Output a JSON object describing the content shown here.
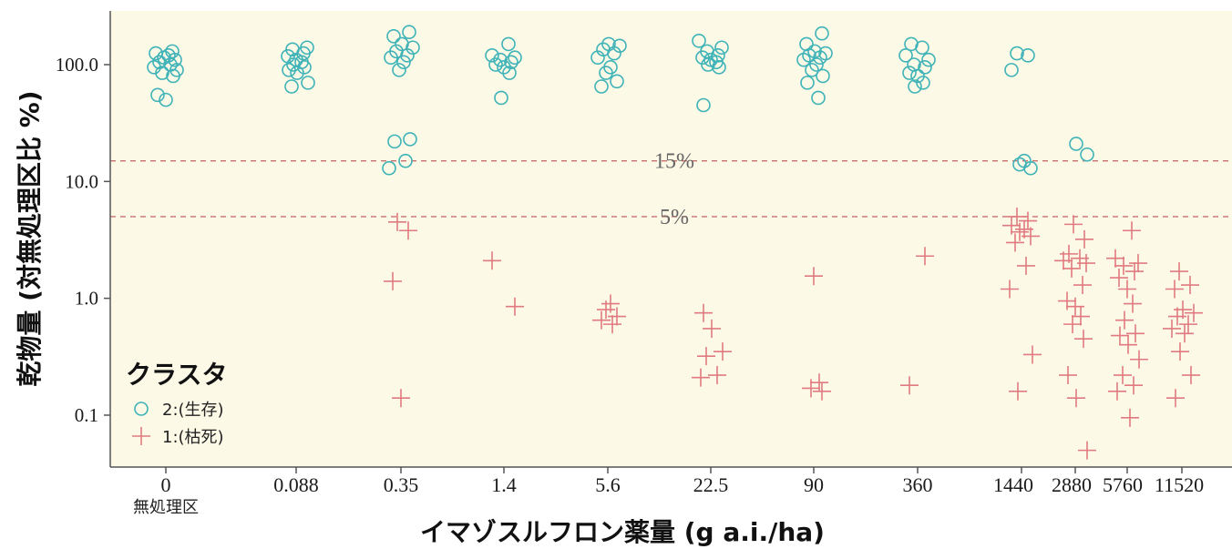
{
  "chart_data": {
    "type": "scatter",
    "xlabel": "イマゾスルフロン薬量 (g a.i./ha)",
    "ylabel": "乾物量 (対無処理区比 %)",
    "y_scale": "log",
    "ylim": [
      0.05,
      300
    ],
    "y_ticks": [
      "100.0",
      "10.0",
      "1.0",
      "0.1"
    ],
    "y_tick_values": [
      100,
      10,
      1,
      0.1
    ],
    "categories": [
      "0",
      "0.088",
      "0.35",
      "1.4",
      "5.6",
      "22.5",
      "90",
      "360",
      "1440",
      "2880",
      "5760",
      "11520"
    ],
    "category_sublabel": "無処理区",
    "reference_lines": [
      {
        "value": 15,
        "label": "15%"
      },
      {
        "value": 5,
        "label": "5%"
      }
    ],
    "legend": {
      "title": "クラスタ",
      "position": "bottom-left",
      "entries": [
        "2:(生存)",
        "1:(枯死)"
      ]
    },
    "colors": {
      "alive": "#3fb3b8",
      "dead": "#e07a80",
      "panel": "#fcf9e6",
      "refline": "#c87070"
    },
    "series": [
      {
        "name": "2:(生存)",
        "marker": "circle",
        "points": [
          [
            "0",
            50
          ],
          [
            "0",
            55
          ],
          [
            "0",
            80
          ],
          [
            "0",
            85
          ],
          [
            "0",
            90
          ],
          [
            "0",
            95
          ],
          [
            "0",
            100
          ],
          [
            "0",
            105
          ],
          [
            "0",
            110
          ],
          [
            "0",
            115
          ],
          [
            "0",
            120
          ],
          [
            "0",
            125
          ],
          [
            "0",
            130
          ],
          [
            "0.088",
            65
          ],
          [
            "0.088",
            70
          ],
          [
            "0.088",
            85
          ],
          [
            "0.088",
            90
          ],
          [
            "0.088",
            95
          ],
          [
            "0.088",
            100
          ],
          [
            "0.088",
            105
          ],
          [
            "0.088",
            110
          ],
          [
            "0.088",
            118
          ],
          [
            "0.088",
            125
          ],
          [
            "0.088",
            135
          ],
          [
            "0.088",
            140
          ],
          [
            "0.35",
            13
          ],
          [
            "0.35",
            15
          ],
          [
            "0.35",
            22
          ],
          [
            "0.35",
            23
          ],
          [
            "0.35",
            90
          ],
          [
            "0.35",
            105
          ],
          [
            "0.35",
            115
          ],
          [
            "0.35",
            120
          ],
          [
            "0.35",
            130
          ],
          [
            "0.35",
            140
          ],
          [
            "0.35",
            150
          ],
          [
            "0.35",
            175
          ],
          [
            "0.35",
            190
          ],
          [
            "1.4",
            52
          ],
          [
            "1.4",
            85
          ],
          [
            "1.4",
            95
          ],
          [
            "1.4",
            100
          ],
          [
            "1.4",
            105
          ],
          [
            "1.4",
            110
          ],
          [
            "1.4",
            115
          ],
          [
            "1.4",
            120
          ],
          [
            "1.4",
            150
          ],
          [
            "5.6",
            65
          ],
          [
            "5.6",
            72
          ],
          [
            "5.6",
            85
          ],
          [
            "5.6",
            95
          ],
          [
            "5.6",
            115
          ],
          [
            "5.6",
            125
          ],
          [
            "5.6",
            135
          ],
          [
            "5.6",
            145
          ],
          [
            "5.6",
            150
          ],
          [
            "22.5",
            45
          ],
          [
            "22.5",
            95
          ],
          [
            "22.5",
            100
          ],
          [
            "22.5",
            105
          ],
          [
            "22.5",
            110
          ],
          [
            "22.5",
            115
          ],
          [
            "22.5",
            120
          ],
          [
            "22.5",
            130
          ],
          [
            "22.5",
            140
          ],
          [
            "22.5",
            160
          ],
          [
            "90",
            52
          ],
          [
            "90",
            70
          ],
          [
            "90",
            80
          ],
          [
            "90",
            90
          ],
          [
            "90",
            100
          ],
          [
            "90",
            110
          ],
          [
            "90",
            115
          ],
          [
            "90",
            120
          ],
          [
            "90",
            125
          ],
          [
            "90",
            130
          ],
          [
            "90",
            150
          ],
          [
            "90",
            185
          ],
          [
            "360",
            65
          ],
          [
            "360",
            70
          ],
          [
            "360",
            80
          ],
          [
            "360",
            85
          ],
          [
            "360",
            95
          ],
          [
            "360",
            100
          ],
          [
            "360",
            110
          ],
          [
            "360",
            120
          ],
          [
            "360",
            140
          ],
          [
            "360",
            150
          ],
          [
            "1440",
            13
          ],
          [
            "1440",
            14
          ],
          [
            "1440",
            15
          ],
          [
            "1440",
            90
          ],
          [
            "1440",
            120
          ],
          [
            "1440",
            125
          ],
          [
            "2880",
            17
          ],
          [
            "2880",
            21
          ]
        ]
      },
      {
        "name": "1:(枯死)",
        "marker": "plus",
        "points": [
          [
            "0.35",
            0.14
          ],
          [
            "0.35",
            1.4
          ],
          [
            "0.35",
            3.8
          ],
          [
            "0.35",
            4.5
          ],
          [
            "1.4",
            0.85
          ],
          [
            "1.4",
            2.1
          ],
          [
            "5.6",
            0.6
          ],
          [
            "5.6",
            0.65
          ],
          [
            "5.6",
            0.7
          ],
          [
            "5.6",
            0.8
          ],
          [
            "5.6",
            0.9
          ],
          [
            "22.5",
            0.21
          ],
          [
            "22.5",
            0.22
          ],
          [
            "22.5",
            0.32
          ],
          [
            "22.5",
            0.35
          ],
          [
            "22.5",
            0.55
          ],
          [
            "22.5",
            0.75
          ],
          [
            "90",
            0.16
          ],
          [
            "90",
            0.17
          ],
          [
            "90",
            0.19
          ],
          [
            "90",
            1.55
          ],
          [
            "360",
            0.18
          ],
          [
            "360",
            2.3
          ],
          [
            "1440",
            0.16
          ],
          [
            "1440",
            0.33
          ],
          [
            "1440",
            1.2
          ],
          [
            "1440",
            1.9
          ],
          [
            "1440",
            3.0
          ],
          [
            "1440",
            3.4
          ],
          [
            "1440",
            3.7
          ],
          [
            "1440",
            3.9
          ],
          [
            "1440",
            4.2
          ],
          [
            "1440",
            4.6
          ],
          [
            "1440",
            5.0
          ],
          [
            "2880",
            0.05
          ],
          [
            "2880",
            0.14
          ],
          [
            "2880",
            0.22
          ],
          [
            "2880",
            0.45
          ],
          [
            "2880",
            0.6
          ],
          [
            "2880",
            0.7
          ],
          [
            "2880",
            0.85
          ],
          [
            "2880",
            0.95
          ],
          [
            "2880",
            1.3
          ],
          [
            "2880",
            1.8
          ],
          [
            "2880",
            2.0
          ],
          [
            "2880",
            2.1
          ],
          [
            "2880",
            2.2
          ],
          [
            "2880",
            2.4
          ],
          [
            "2880",
            3.2
          ],
          [
            "2880",
            4.3
          ],
          [
            "5760",
            0.095
          ],
          [
            "5760",
            0.16
          ],
          [
            "5760",
            0.18
          ],
          [
            "5760",
            0.22
          ],
          [
            "5760",
            0.3
          ],
          [
            "5760",
            0.4
          ],
          [
            "5760",
            0.48
          ],
          [
            "5760",
            0.5
          ],
          [
            "5760",
            0.65
          ],
          [
            "5760",
            0.9
          ],
          [
            "5760",
            1.2
          ],
          [
            "5760",
            1.5
          ],
          [
            "5760",
            1.7
          ],
          [
            "5760",
            1.9
          ],
          [
            "5760",
            2.0
          ],
          [
            "5760",
            2.2
          ],
          [
            "5760",
            3.8
          ],
          [
            "11520",
            0.14
          ],
          [
            "11520",
            0.22
          ],
          [
            "11520",
            0.35
          ],
          [
            "11520",
            0.5
          ],
          [
            "11520",
            0.55
          ],
          [
            "11520",
            0.6
          ],
          [
            "11520",
            0.7
          ],
          [
            "11520",
            0.75
          ],
          [
            "11520",
            0.8
          ],
          [
            "11520",
            1.2
          ],
          [
            "11520",
            1.3
          ],
          [
            "11520",
            1.7
          ]
        ]
      }
    ]
  }
}
